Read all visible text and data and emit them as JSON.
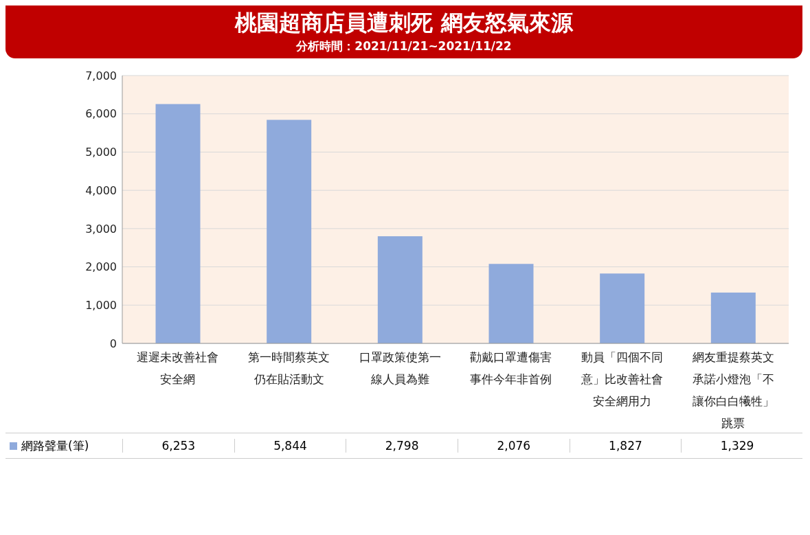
{
  "chart_data": {
    "type": "bar",
    "title": "桃園超商店員遭刺死 網友怒氣來源",
    "subtitle": "分析時間：2021/11/21~2021/11/22",
    "categories": [
      "遲遲未改善社會安全網",
      "第一時間蔡英文仍在貼活動文",
      "口罩政策使第一線人員為難",
      "勸戴口罩遭傷害事件今年非首例",
      "動員「四個不同意」比改善社會安全網用力",
      "網友重提蔡英文承諾小燈泡「不讓你白白犧牲」跳票"
    ],
    "series": [
      {
        "name": "網路聲量(筆)",
        "color": "#8faadc",
        "values": [
          6253,
          5844,
          2798,
          2076,
          1827,
          1329
        ],
        "value_labels": [
          "6,253",
          "5,844",
          "2,798",
          "2,076",
          "1,827",
          "1,329"
        ]
      }
    ],
    "ylim": [
      0,
      7000
    ],
    "yticks": [
      0,
      {
        "value": 1000,
        "label": "1,000"
      },
      {
        "value": 2000,
        "label": "2,000"
      },
      {
        "value": 3000,
        "label": "3,000"
      },
      {
        "value": 4000,
        "label": "4,000"
      },
      {
        "value": 5000,
        "label": "5,000"
      },
      {
        "value": 6000,
        "label": "6,000"
      },
      {
        "value": 7000,
        "label": "7,000"
      }
    ],
    "grid": "y",
    "legend": "bottom"
  }
}
